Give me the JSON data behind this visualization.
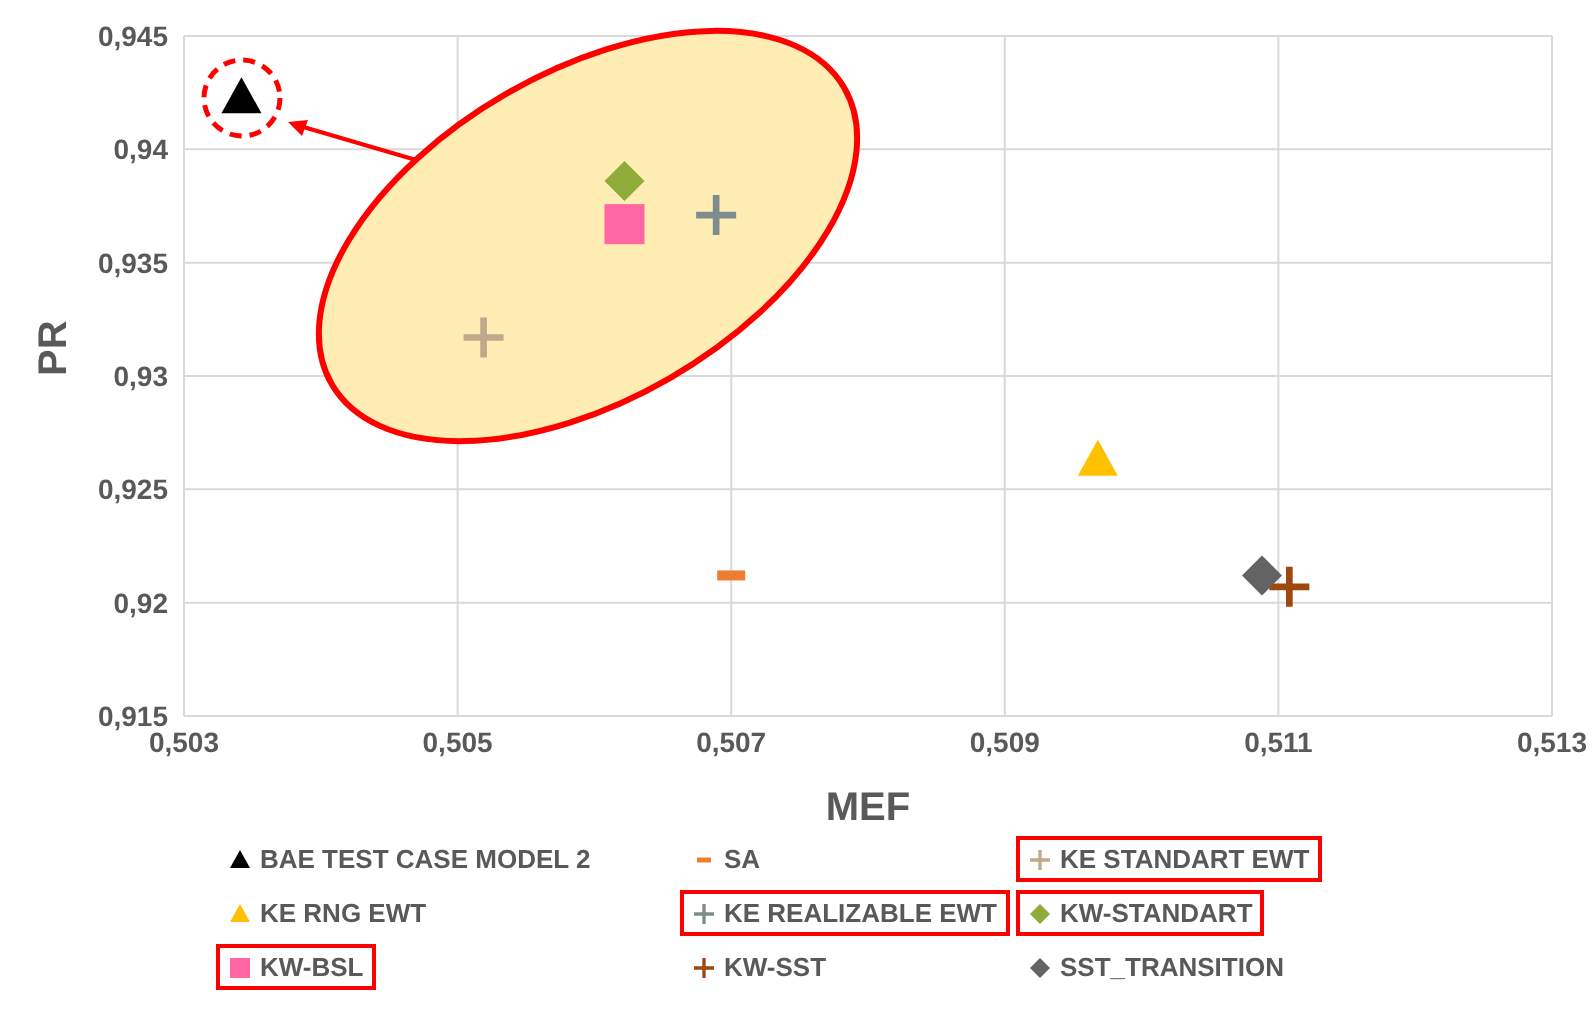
{
  "chart_data": {
    "type": "scatter",
    "xlabel": "MEF",
    "ylabel": "PR",
    "xlim": [
      0.503,
      0.513
    ],
    "xticks": [
      {
        "value": 0.503,
        "label": "0,503"
      },
      {
        "value": 0.505,
        "label": "0,505"
      },
      {
        "value": 0.507,
        "label": "0,507"
      },
      {
        "value": 0.509,
        "label": "0,509"
      },
      {
        "value": 0.511,
        "label": "0,511"
      },
      {
        "value": 0.513,
        "label": "0,513"
      }
    ],
    "ylim": [
      0.915,
      0.945
    ],
    "yticks": [
      {
        "value": 0.915,
        "label": "0,915"
      },
      {
        "value": 0.92,
        "label": "0,92"
      },
      {
        "value": 0.925,
        "label": "0,925"
      },
      {
        "value": 0.93,
        "label": "0,93"
      },
      {
        "value": 0.935,
        "label": "0,935"
      },
      {
        "value": 0.94,
        "label": "0,94"
      },
      {
        "value": 0.945,
        "label": "0,945"
      }
    ],
    "grid": true,
    "legend": "bottom",
    "series": [
      {
        "name": "BAE TEST CASE MODEL 2",
        "color": "#000000",
        "marker": "triangle",
        "x": [
          0.50342
        ],
        "values": [
          0.9423
        ]
      },
      {
        "name": "SA",
        "color": "#ed7d31",
        "x": [
          0.507
        ],
        "values": [
          0.9212
        ]
      },
      {
        "name": "KE STANDART EWT",
        "color": "#bfa98a",
        "marker": "cross",
        "x": [
          0.50519
        ],
        "values": [
          0.9317
        ]
      },
      {
        "name": "KE RNG EWT",
        "color": "#ffc000",
        "marker": "triangle",
        "x": [
          0.50968
        ],
        "values": [
          0.9263
        ]
      },
      {
        "name": "KE REALIZABLE EWT",
        "color": "#7f8c8d",
        "marker": "cross",
        "x": [
          0.50689
        ],
        "values": [
          0.9371
        ]
      },
      {
        "name": "KW-STANDART",
        "color": "#8fab3a",
        "marker": "diamond",
        "x": [
          0.50622
        ],
        "values": [
          0.9386
        ]
      },
      {
        "name": "KW-BSL",
        "color": "#ff66a3",
        "marker": "square",
        "x": [
          0.50622
        ],
        "values": [
          0.9367
        ]
      },
      {
        "name": "KW-SST",
        "color": "#9e480e",
        "marker": "cross",
        "x": [
          0.51108
        ],
        "values": [
          0.9207
        ]
      },
      {
        "name": "SST_TRANSITION",
        "color": "#636363",
        "marker": "diamond",
        "x": [
          0.51088
        ],
        "values": [
          0.9212
        ]
      }
    ]
  }
}
